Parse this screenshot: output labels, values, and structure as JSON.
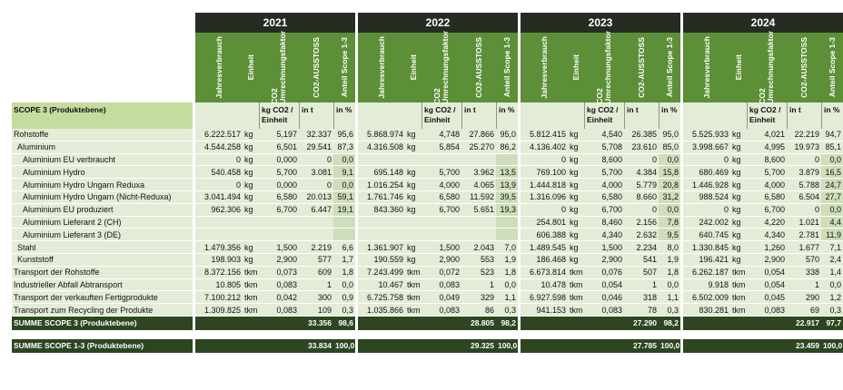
{
  "years": [
    "2021",
    "2022",
    "2023",
    "2024"
  ],
  "headers": {
    "jahresverbrauch": "Jahresverbrauch",
    "einheit": "Einheit",
    "co2_line1": "CO2",
    "co2_line2": "Umrechnungsfaktor",
    "ausstoss": "CO2-AUSSTOSS",
    "anteil": "Anteil Scope 1-3"
  },
  "units": {
    "factor": "kg CO2 / Einheit",
    "ausstoss": "in t",
    "anteil": "in %"
  },
  "scope_label": "SCOPE 3 (Produktebene)",
  "rows": [
    {
      "label": "Rohstoffe",
      "indent": 0,
      "shade_anteil": false,
      "years": [
        [
          "6.222.517",
          "kg",
          "5,197",
          "32.337",
          "95,6"
        ],
        [
          "5.868.974",
          "kg",
          "4,748",
          "27.866",
          "95,0"
        ],
        [
          "5.812.415",
          "kg",
          "4,540",
          "26.385",
          "95,0"
        ],
        [
          "5.525.933",
          "kg",
          "4,021",
          "22.219",
          "94,7"
        ]
      ]
    },
    {
      "label": "Aluminium",
      "indent": 1,
      "shade_anteil": false,
      "years": [
        [
          "4.544.258",
          "kg",
          "6,501",
          "29.541",
          "87,3"
        ],
        [
          "4.316.508",
          "kg",
          "5,854",
          "25.270",
          "86,2"
        ],
        [
          "4.136.402",
          "kg",
          "5,708",
          "23.610",
          "85,0"
        ],
        [
          "3.998.667",
          "kg",
          "4,995",
          "19.973",
          "85,1"
        ]
      ]
    },
    {
      "label": "Aluminium EU verbraucht",
      "indent": 2,
      "shade_anteil": true,
      "years": [
        [
          "0",
          "kg",
          "0,000",
          "0",
          "0,0"
        ],
        [
          "",
          "",
          "",
          "",
          ""
        ],
        [
          "0",
          "kg",
          "8,600",
          "0",
          "0,0"
        ],
        [
          "0",
          "kg",
          "8,600",
          "0",
          "0,0"
        ]
      ]
    },
    {
      "label": "Aluminium Hydro",
      "indent": 2,
      "shade_anteil": true,
      "years": [
        [
          "540.458",
          "kg",
          "5,700",
          "3.081",
          "9,1"
        ],
        [
          "695.148",
          "kg",
          "5,700",
          "3.962",
          "13,5"
        ],
        [
          "769.100",
          "kg",
          "5,700",
          "4.384",
          "15,8"
        ],
        [
          "680.469",
          "kg",
          "5,700",
          "3.879",
          "16,5"
        ]
      ]
    },
    {
      "label": "Aluminium Hydro Ungarn Reduxa",
      "indent": 2,
      "shade_anteil": true,
      "years": [
        [
          "0",
          "kg",
          "0,000",
          "0",
          "0,0"
        ],
        [
          "1.016.254",
          "kg",
          "4,000",
          "4.065",
          "13,9"
        ],
        [
          "1.444.818",
          "kg",
          "4,000",
          "5.779",
          "20,8"
        ],
        [
          "1.446.928",
          "kg",
          "4,000",
          "5.788",
          "24,7"
        ]
      ]
    },
    {
      "label": "Aluminium Hydro Ungarn (Nicht-Reduxa)",
      "indent": 2,
      "shade_anteil": true,
      "years": [
        [
          "3.041.494",
          "kg",
          "6,580",
          "20.013",
          "59,1"
        ],
        [
          "1.761.746",
          "kg",
          "6,580",
          "11.592",
          "39,5"
        ],
        [
          "1.316.096",
          "kg",
          "6,580",
          "8.660",
          "31,2"
        ],
        [
          "988.524",
          "kg",
          "6,580",
          "6.504",
          "27,7"
        ]
      ]
    },
    {
      "label": "Aluminium EU produziert",
      "indent": 2,
      "shade_anteil": true,
      "years": [
        [
          "962.306",
          "kg",
          "6,700",
          "6.447",
          "19,1"
        ],
        [
          "843.360",
          "kg",
          "6,700",
          "5.651",
          "19,3"
        ],
        [
          "0",
          "kg",
          "6,700",
          "0",
          "0,0"
        ],
        [
          "0",
          "kg",
          "6,700",
          "0",
          "0,0"
        ]
      ]
    },
    {
      "label": "Aluminium Lieferant 2 (CH)",
      "indent": 2,
      "shade_anteil": true,
      "years": [
        [
          "",
          "",
          "",
          "",
          ""
        ],
        [
          "",
          "",
          "",
          "",
          ""
        ],
        [
          "254.801",
          "kg",
          "8,460",
          "2.156",
          "7,8"
        ],
        [
          "242.002",
          "kg",
          "4,220",
          "1.021",
          "4,4"
        ]
      ]
    },
    {
      "label": "Aluminium Lieferant 3 (DE)",
      "indent": 2,
      "shade_anteil": true,
      "years": [
        [
          "",
          "",
          "",
          "",
          ""
        ],
        [
          "",
          "",
          "",
          "",
          ""
        ],
        [
          "606.388",
          "kg",
          "4,340",
          "2.632",
          "9,5"
        ],
        [
          "640.745",
          "kg",
          "4,340",
          "2.781",
          "11,9"
        ]
      ]
    },
    {
      "label": "Stahl",
      "indent": 1,
      "shade_anteil": false,
      "years": [
        [
          "1.479.356",
          "kg",
          "1,500",
          "2.219",
          "6,6"
        ],
        [
          "1.361.907",
          "kg",
          "1,500",
          "2.043",
          "7,0"
        ],
        [
          "1.489.545",
          "kg",
          "1,500",
          "2.234",
          "8,0"
        ],
        [
          "1.330.845",
          "kg",
          "1,260",
          "1.677",
          "7,1"
        ]
      ]
    },
    {
      "label": "Kunststoff",
      "indent": 1,
      "shade_anteil": false,
      "years": [
        [
          "198.903",
          "kg",
          "2,900",
          "577",
          "1,7"
        ],
        [
          "190.559",
          "kg",
          "2,900",
          "553",
          "1,9"
        ],
        [
          "186.468",
          "kg",
          "2,900",
          "541",
          "1,9"
        ],
        [
          "196.421",
          "kg",
          "2,900",
          "570",
          "2,4"
        ]
      ]
    },
    {
      "label": "Transport der Rohstoffe",
      "indent": 0,
      "shade_anteil": false,
      "years": [
        [
          "8.372.156",
          "tkm",
          "0,073",
          "609",
          "1,8"
        ],
        [
          "7.243.499",
          "tkm",
          "0,072",
          "523",
          "1,8"
        ],
        [
          "6.673.814",
          "tkm",
          "0,076",
          "507",
          "1,8"
        ],
        [
          "6.262.187",
          "tkm",
          "0,054",
          "338",
          "1,4"
        ]
      ]
    },
    {
      "label": "Industrieller Abfall Abtransport",
      "indent": 0,
      "shade_anteil": false,
      "years": [
        [
          "10.805",
          "tkm",
          "0,083",
          "1",
          "0,0"
        ],
        [
          "10.467",
          "tkm",
          "0,083",
          "1",
          "0,0"
        ],
        [
          "10.478",
          "tkm",
          "0,054",
          "1",
          "0,0"
        ],
        [
          "9.918",
          "tkm",
          "0,054",
          "1",
          "0,0"
        ]
      ]
    },
    {
      "label": "Transport der verkauften Fertigprodukte",
      "indent": 0,
      "shade_anteil": false,
      "years": [
        [
          "7.100.212",
          "tkm",
          "0,042",
          "300",
          "0,9"
        ],
        [
          "6.725.758",
          "tkm",
          "0,049",
          "329",
          "1,1"
        ],
        [
          "6.927.598",
          "tkm",
          "0,046",
          "318",
          "1,1"
        ],
        [
          "6.502.009",
          "tkm",
          "0,045",
          "290",
          "1,2"
        ]
      ]
    },
    {
      "label": "Transport zum Recycling der Produkte",
      "indent": 0,
      "shade_anteil": false,
      "years": [
        [
          "1.309.825",
          "tkm",
          "0,083",
          "109",
          "0,3"
        ],
        [
          "1.035.866",
          "tkm",
          "0,083",
          "86",
          "0,3"
        ],
        [
          "941.153",
          "tkm",
          "0,083",
          "78",
          "0,3"
        ],
        [
          "830.281",
          "tkm",
          "0,083",
          "69",
          "0,3"
        ]
      ]
    }
  ],
  "summe_scope3": {
    "label": "SUMME SCOPE 3 (Produktebene)",
    "years": [
      [
        "33.356",
        "98,6"
      ],
      [
        "28.805",
        "98,2"
      ],
      [
        "27.290",
        "98,2"
      ],
      [
        "22.917",
        "97,7"
      ]
    ]
  },
  "summe_total": {
    "label": "SUMME SCOPE 1-3 (Produktebene)",
    "years": [
      [
        "33.834",
        "100,0"
      ],
      [
        "29.325",
        "100,0"
      ],
      [
        "27.785",
        "100,0"
      ],
      [
        "23.459",
        "100,0"
      ]
    ]
  }
}
